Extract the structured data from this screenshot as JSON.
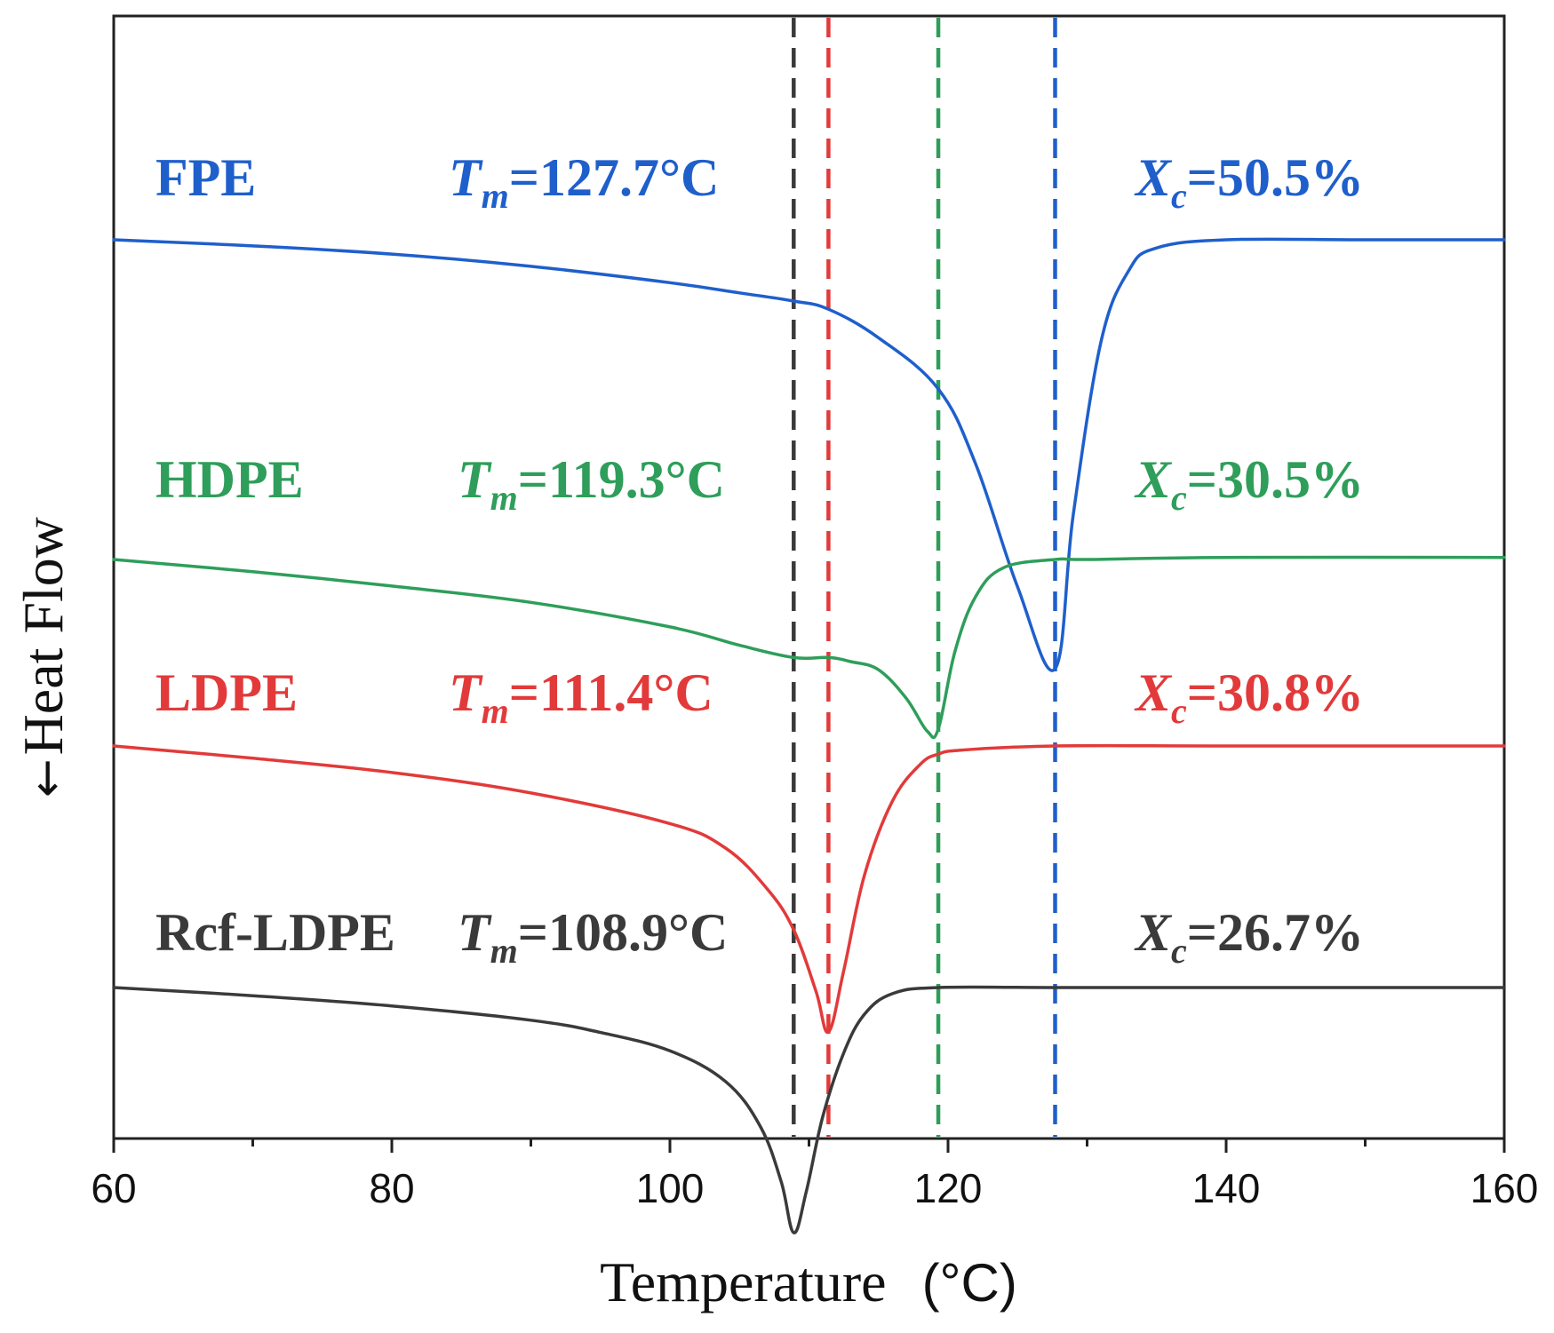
{
  "chart_data": {
    "type": "line",
    "title": "",
    "xlabel": "Temperature",
    "xlabel_unit": "(°C)",
    "ylabel": "Heat Flow",
    "y_arrow": "←",
    "xlim": [
      60,
      160
    ],
    "x_major_ticks": [
      60,
      80,
      100,
      120,
      140,
      160
    ],
    "x_minor_ticks": [
      70,
      90,
      110,
      130,
      150
    ],
    "x_tick_labels": [
      "60",
      "80",
      "100",
      "120",
      "140",
      "160"
    ],
    "y_ticks_shown": false,
    "grid": false,
    "legend": "none (series labelled inline)",
    "series": [
      {
        "name": "FPE",
        "color": "#1f5fcc",
        "tm_value": 127.7,
        "tm_prefix": "T",
        "tm_sub": "m",
        "tm_text": "=127.7°C",
        "xc_prefix": "X",
        "xc_sub": "c",
        "xc_text": "=50.5%",
        "baseline_level": 0.875,
        "x": [
          60,
          70,
          80,
          90,
          100,
          105,
          108.9,
          111.4,
          115,
          119.3,
          122,
          125,
          127.7,
          129,
          131,
          133,
          135,
          140,
          150,
          160
        ],
        "y": [
          0.0,
          -0.3,
          -0.7,
          -1.3,
          -2.1,
          -2.6,
          -3.0,
          -3.4,
          -4.8,
          -7.3,
          -11.0,
          -17.0,
          -21.0,
          -13.5,
          -5.0,
          -1.5,
          -0.4,
          0.0,
          0.0,
          0.0
        ]
      },
      {
        "name": "HDPE",
        "color": "#2e9e5a",
        "tm_value": 119.3,
        "tm_prefix": "T",
        "tm_sub": "m",
        "tm_text": "=119.3°C",
        "xc_prefix": "X",
        "xc_sub": "c",
        "xc_text": "=30.5%",
        "baseline_level": 0.59,
        "x": [
          60,
          70,
          80,
          90,
          100,
          105,
          108.9,
          111.4,
          113,
          115,
          117,
          118.5,
          119.3,
          120.5,
          122,
          124,
          127.7,
          130,
          140,
          160
        ],
        "y": [
          0.0,
          -0.6,
          -1.3,
          -2.1,
          -3.3,
          -4.2,
          -4.8,
          -4.8,
          -5.0,
          -5.4,
          -6.8,
          -8.4,
          -8.3,
          -4.5,
          -1.8,
          -0.4,
          0.0,
          0.0,
          0.1,
          0.1
        ]
      },
      {
        "name": "LDPE",
        "color": "#e23a3a",
        "tm_value": 111.4,
        "tm_prefix": "T",
        "tm_sub": "m",
        "tm_text": "=111.4°C",
        "xc_prefix": "X",
        "xc_sub": "c",
        "xc_text": "=30.8%",
        "baseline_level": 0.42,
        "x": [
          60,
          70,
          80,
          90,
          100,
          104,
          107,
          108.9,
          110.5,
          111.4,
          112.5,
          114,
          116,
          118,
          119.3,
          121,
          127.7,
          140,
          160
        ],
        "y": [
          0.0,
          -0.6,
          -1.3,
          -2.3,
          -3.8,
          -5.0,
          -7.0,
          -9.0,
          -12.0,
          -14.0,
          -11.0,
          -6.3,
          -2.7,
          -0.9,
          -0.4,
          -0.2,
          0.0,
          0.0,
          0.0
        ]
      },
      {
        "name": "Rcf-LDPE",
        "color": "#3a3a3a",
        "tm_value": 108.9,
        "tm_prefix": "T",
        "tm_sub": "m",
        "tm_text": "=108.9°C",
        "xc_prefix": "X",
        "xc_sub": "c",
        "xc_text": "=26.7%",
        "baseline_level": 0.2,
        "x": [
          60,
          70,
          80,
          90,
          95,
          100,
          104,
          106.5,
          108,
          108.9,
          109.8,
          111,
          112.5,
          114,
          116,
          119.3,
          127.7,
          140,
          160
        ],
        "y": [
          0.0,
          -0.4,
          -0.9,
          -1.6,
          -2.2,
          -3.1,
          -4.6,
          -6.8,
          -9.5,
          -12.0,
          -10.0,
          -6.3,
          -3.2,
          -1.3,
          -0.3,
          0.0,
          0.0,
          0.0,
          0.0
        ]
      }
    ],
    "vertical_lines": [
      {
        "x": 108.9,
        "color": "#3a3a3a",
        "style": "dashed"
      },
      {
        "x": 111.4,
        "color": "#e23a3a",
        "style": "dashed"
      },
      {
        "x": 119.3,
        "color": "#2e9e5a",
        "style": "dashed"
      },
      {
        "x": 127.7,
        "color": "#1f5fcc",
        "style": "dashed"
      }
    ]
  }
}
